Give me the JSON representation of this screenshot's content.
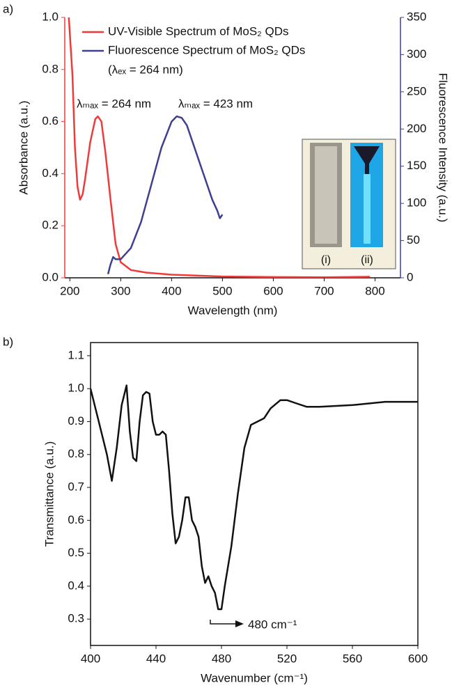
{
  "chart_data": [
    {
      "type": "line",
      "panel_label": "a)",
      "xlabel": "Wavelength (nm)",
      "ylabel": "Absorbance (a.u.)",
      "y2label": "Fluorescence Intensity (a.u.)",
      "xlim": [
        190,
        850
      ],
      "xticks": [
        200,
        300,
        400,
        500,
        600,
        700,
        800
      ],
      "ylim": [
        0,
        1
      ],
      "yticks": [
        {
          "value": 0,
          "label": "0.0"
        },
        0.2,
        0.4,
        0.6,
        0.8,
        {
          "value": 1,
          "label": "1.0"
        }
      ],
      "y2lim": [
        0,
        350
      ],
      "y2ticks": [
        0,
        50,
        100,
        150,
        200,
        250,
        300,
        350
      ],
      "ycolor": "#f03a3a",
      "y2color": "#3c3f92",
      "series": [
        {
          "name": "UV-Visible Spectrum of MoS₂ QDs",
          "color": "#f03a3a",
          "x": [
            198,
            205,
            210,
            215,
            220,
            225,
            230,
            240,
            250,
            255,
            262,
            270,
            280,
            290,
            300,
            320,
            350,
            400,
            500,
            600,
            700,
            790
          ],
          "values": [
            1.0,
            0.78,
            0.5,
            0.35,
            0.3,
            0.32,
            0.38,
            0.52,
            0.61,
            0.62,
            0.6,
            0.48,
            0.3,
            0.13,
            0.06,
            0.03,
            0.02,
            0.012,
            0.005,
            0.003,
            0.002,
            0.004
          ]
        },
        {
          "name": "Fluorescence Spectrum of MoS₂ QDs",
          "color": "#3c3f92",
          "axis": "y2",
          "x": [
            275,
            280,
            285,
            290,
            300,
            320,
            340,
            360,
            380,
            400,
            410,
            420,
            430,
            440,
            460,
            480,
            490,
            495,
            500
          ],
          "values": [
            5,
            18,
            28,
            25,
            25,
            40,
            75,
            125,
            175,
            210,
            217,
            215,
            205,
            185,
            145,
            105,
            90,
            80,
            85
          ]
        }
      ],
      "excitation_note": "(λₑₓ = 264 nm)",
      "peak_labels": [
        "λₘₐₓ = 264 nm",
        "λₘₐₓ = 423 nm"
      ],
      "inset_labels": [
        "(i)",
        "(ii)"
      ]
    },
    {
      "type": "line",
      "panel_label": "b)",
      "xlabel": "Wavenumber (cm⁻¹)",
      "ylabel": "Transmittance (a.u.)",
      "xlim": [
        400,
        600
      ],
      "xticks": [
        400,
        440,
        480,
        520,
        560,
        600
      ],
      "ylim": [
        0.22,
        1.14
      ],
      "yticks": [
        0.3,
        0.4,
        0.5,
        0.6,
        0.7,
        0.8,
        0.9,
        {
          "value": 1,
          "label": "1.0"
        },
        1.1
      ],
      "series": [
        {
          "color": "#111111",
          "x": [
            400,
            405,
            410,
            413,
            416,
            419,
            422,
            424,
            426,
            428,
            430,
            432,
            434,
            436,
            438,
            440,
            442,
            444,
            446,
            448,
            450,
            452,
            454,
            456,
            458,
            460,
            462,
            464,
            466,
            468,
            470,
            472,
            474,
            476,
            478,
            480,
            482,
            486,
            490,
            494,
            498,
            502,
            506,
            510,
            516,
            520,
            526,
            532,
            540,
            560,
            580,
            600
          ],
          "values": [
            1.0,
            0.9,
            0.8,
            0.72,
            0.82,
            0.95,
            1.01,
            0.87,
            0.79,
            0.78,
            0.9,
            0.98,
            0.99,
            0.985,
            0.9,
            0.86,
            0.86,
            0.87,
            0.86,
            0.75,
            0.62,
            0.53,
            0.55,
            0.6,
            0.67,
            0.67,
            0.6,
            0.58,
            0.55,
            0.46,
            0.41,
            0.43,
            0.4,
            0.38,
            0.33,
            0.33,
            0.4,
            0.52,
            0.68,
            0.82,
            0.89,
            0.9,
            0.91,
            0.94,
            0.965,
            0.965,
            0.955,
            0.945,
            0.945,
            0.95,
            0.96,
            0.96
          ]
        }
      ],
      "annotation": "480 cm⁻¹"
    }
  ]
}
